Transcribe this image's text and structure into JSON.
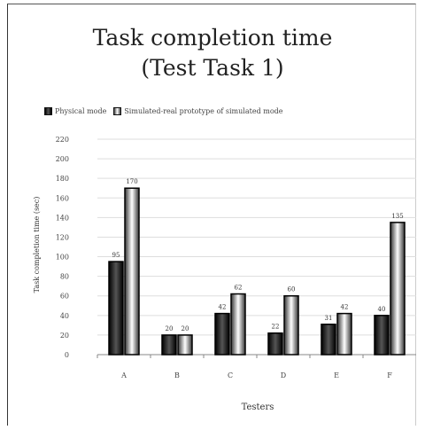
{
  "chart_data": {
    "type": "bar",
    "title": "Task completion time\n(Test Task 1)",
    "xlabel": "Testers",
    "ylabel": "Task completion time (sec)",
    "categories": [
      "A",
      "B",
      "C",
      "D",
      "E",
      "F"
    ],
    "series": [
      {
        "name": "Physical mode",
        "values": [
          95,
          20,
          42,
          22,
          31,
          40
        ]
      },
      {
        "name": "Simulated-real prototype of simulated mode",
        "values": [
          170,
          20,
          62,
          60,
          42,
          135
        ]
      }
    ],
    "data_labels": [
      [
        "95",
        "20",
        "42",
        "22",
        "31",
        "40"
      ],
      [
        "170",
        "20",
        "62",
        "60",
        "42",
        "135"
      ]
    ],
    "ylim": [
      0,
      220
    ],
    "yticks": [
      0,
      20,
      40,
      60,
      80,
      100,
      120,
      140,
      160,
      180,
      200,
      220
    ],
    "ytick_labels": [
      "0",
      "20",
      "40",
      "60",
      "80",
      "100",
      "120",
      "140",
      "160",
      "180",
      "200",
      "220"
    ],
    "grid": true,
    "legend_position": "top"
  },
  "colors": {
    "series_dark": "#000000",
    "series_light": "#ffffff",
    "grid": "#dddddd"
  }
}
